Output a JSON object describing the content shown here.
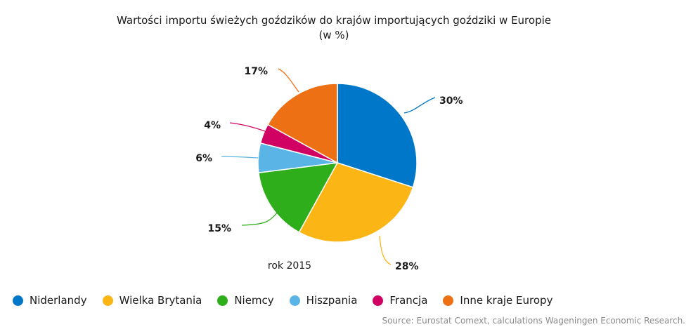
{
  "chart_data": {
    "type": "pie",
    "title": "Wartości importu świeżych goździków do krajów importujących goździki w Europie",
    "subtitle": "(w %)",
    "annotation": "rok 2015",
    "slices": [
      {
        "name": "Niderlandy",
        "value": 30,
        "label": "30%",
        "color": "#0077c8"
      },
      {
        "name": "Wielka Brytania",
        "value": 28,
        "label": "28%",
        "color": "#fbb616"
      },
      {
        "name": "Niemcy",
        "value": 15,
        "label": "15%",
        "color": "#2fae1b"
      },
      {
        "name": "Hiszpania",
        "value": 6,
        "label": "6%",
        "color": "#5ab4e5"
      },
      {
        "name": "Francja",
        "value": 4,
        "label": "4%",
        "color": "#d10063"
      },
      {
        "name": "Inne kraje Europy",
        "value": 17,
        "label": "17%",
        "color": "#ee7014"
      }
    ],
    "legend_position": "bottom"
  },
  "source": "Source: Eurostat Comext, calculations Wageningen Economic Research."
}
